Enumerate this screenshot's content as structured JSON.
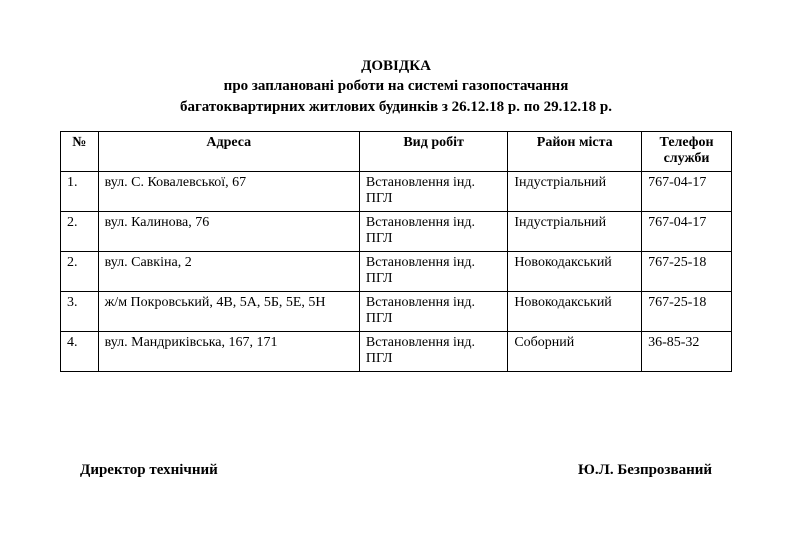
{
  "title": {
    "line1": "ДОВІДКА",
    "line2": "про заплановані роботи на системі газопостачання",
    "line3": "багатоквартирних житлових будинків з 26.12.18 р. по 29.12.18 р."
  },
  "columns": {
    "num": "№",
    "address": "Адреса",
    "work_type": "Вид робіт",
    "district": "Район міста",
    "phone": "Телефон служби"
  },
  "rows": [
    {
      "num": "1.",
      "address": "вул. С. Ковалевської, 67",
      "work_type": "Встановлення інд. ПГЛ",
      "district": "Індустріальний",
      "phone": "767-04-17"
    },
    {
      "num": "2.",
      "address": "вул. Калинова, 76",
      "work_type": "Встановлення інд. ПГЛ",
      "district": "Індустріальний",
      "phone": "767-04-17"
    },
    {
      "num": "2.",
      "address": "вул. Савкіна, 2",
      "work_type": "Встановлення інд. ПГЛ",
      "district": "Новокодакський",
      "phone": "767-25-18"
    },
    {
      "num": "3.",
      "address": "ж/м Покровський, 4В, 5А, 5Б, 5Е, 5Н",
      "work_type": "Встановлення інд. ПГЛ",
      "district": "Новокодакський",
      "phone": "767-25-18"
    },
    {
      "num": "4.",
      "address": "вул. Мандриківська, 167, 171",
      "work_type": "Встановлення інд. ПГЛ",
      "district": "Соборний",
      "phone": "36-85-32"
    }
  ],
  "signatures": {
    "position": "Директор технічний",
    "name": "Ю.Л. Безпрозваний"
  },
  "style": {
    "page_bg": "#ffffff",
    "text_color": "#000000",
    "border_color": "#000000",
    "font_family": "Times New Roman",
    "title_fontsize": 15,
    "body_fontsize": 14
  }
}
